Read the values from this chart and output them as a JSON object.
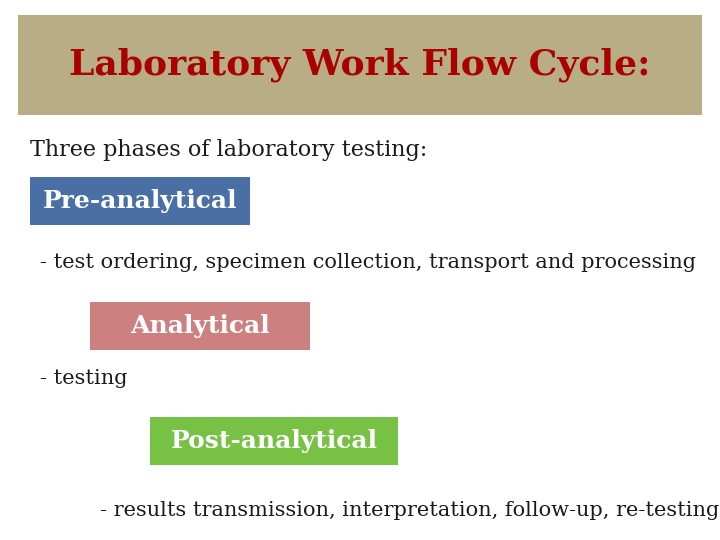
{
  "title": "Laboratory Work Flow Cycle:",
  "title_color": "#aa0000",
  "title_bg_color": "#b8ad85",
  "title_fontsize": 26,
  "subtitle": "Three phases of laboratory testing:",
  "subtitle_fontsize": 16,
  "subtitle_color": "#1a1a1a",
  "bg_color": "#ffffff",
  "phases": [
    {
      "label": "Pre-analytical",
      "box_color": "#4a6fa5",
      "text_color": "#ffffff",
      "description": "- test ordering, specimen collection, transport and processing",
      "label_fontsize": 18,
      "desc_fontsize": 15
    },
    {
      "label": "Analytical",
      "box_color": "#cc8080",
      "text_color": "#ffffff",
      "description": "- testing",
      "label_fontsize": 18,
      "desc_fontsize": 15
    },
    {
      "label": "Post-analytical",
      "box_color": "#77c244",
      "text_color": "#ffffff",
      "description": "- results transmission, interpretation, follow-up, re-testing.",
      "label_fontsize": 18,
      "desc_fontsize": 15
    }
  ],
  "desc_color": "#1a1a1a"
}
